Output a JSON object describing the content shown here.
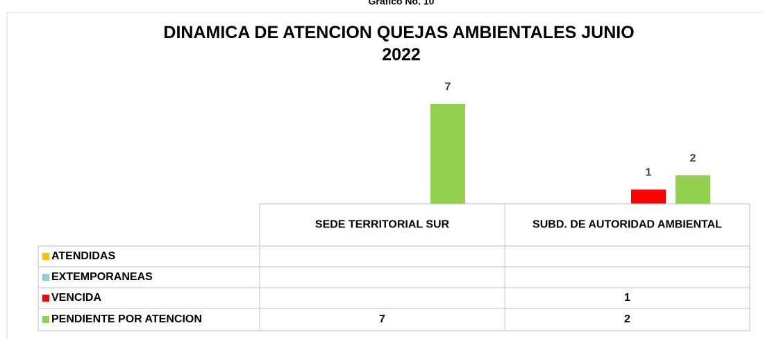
{
  "chart_data": {
    "type": "bar",
    "caption": "Grafico No. 10",
    "title": "DINAMICA DE ATENCION QUEJAS AMBIENTALES JUNIO 2022",
    "categories": [
      "SEDE TERRITORIAL SUR",
      "SUBD. DE AUTORIDAD AMBIENTAL"
    ],
    "series": [
      {
        "name": "ATENDIDAS",
        "color": "#ffc000",
        "values": [
          null,
          null
        ]
      },
      {
        "name": "EXTEMPORANEAS",
        "color": "#92cddc",
        "values": [
          null,
          null
        ]
      },
      {
        "name": "VENCIDA",
        "color": "#ff0000",
        "values": [
          null,
          1
        ]
      },
      {
        "name": "PENDIENTE POR ATENCION",
        "color": "#92d050",
        "values": [
          7,
          2
        ]
      }
    ],
    "ylim": [
      0,
      7
    ]
  }
}
